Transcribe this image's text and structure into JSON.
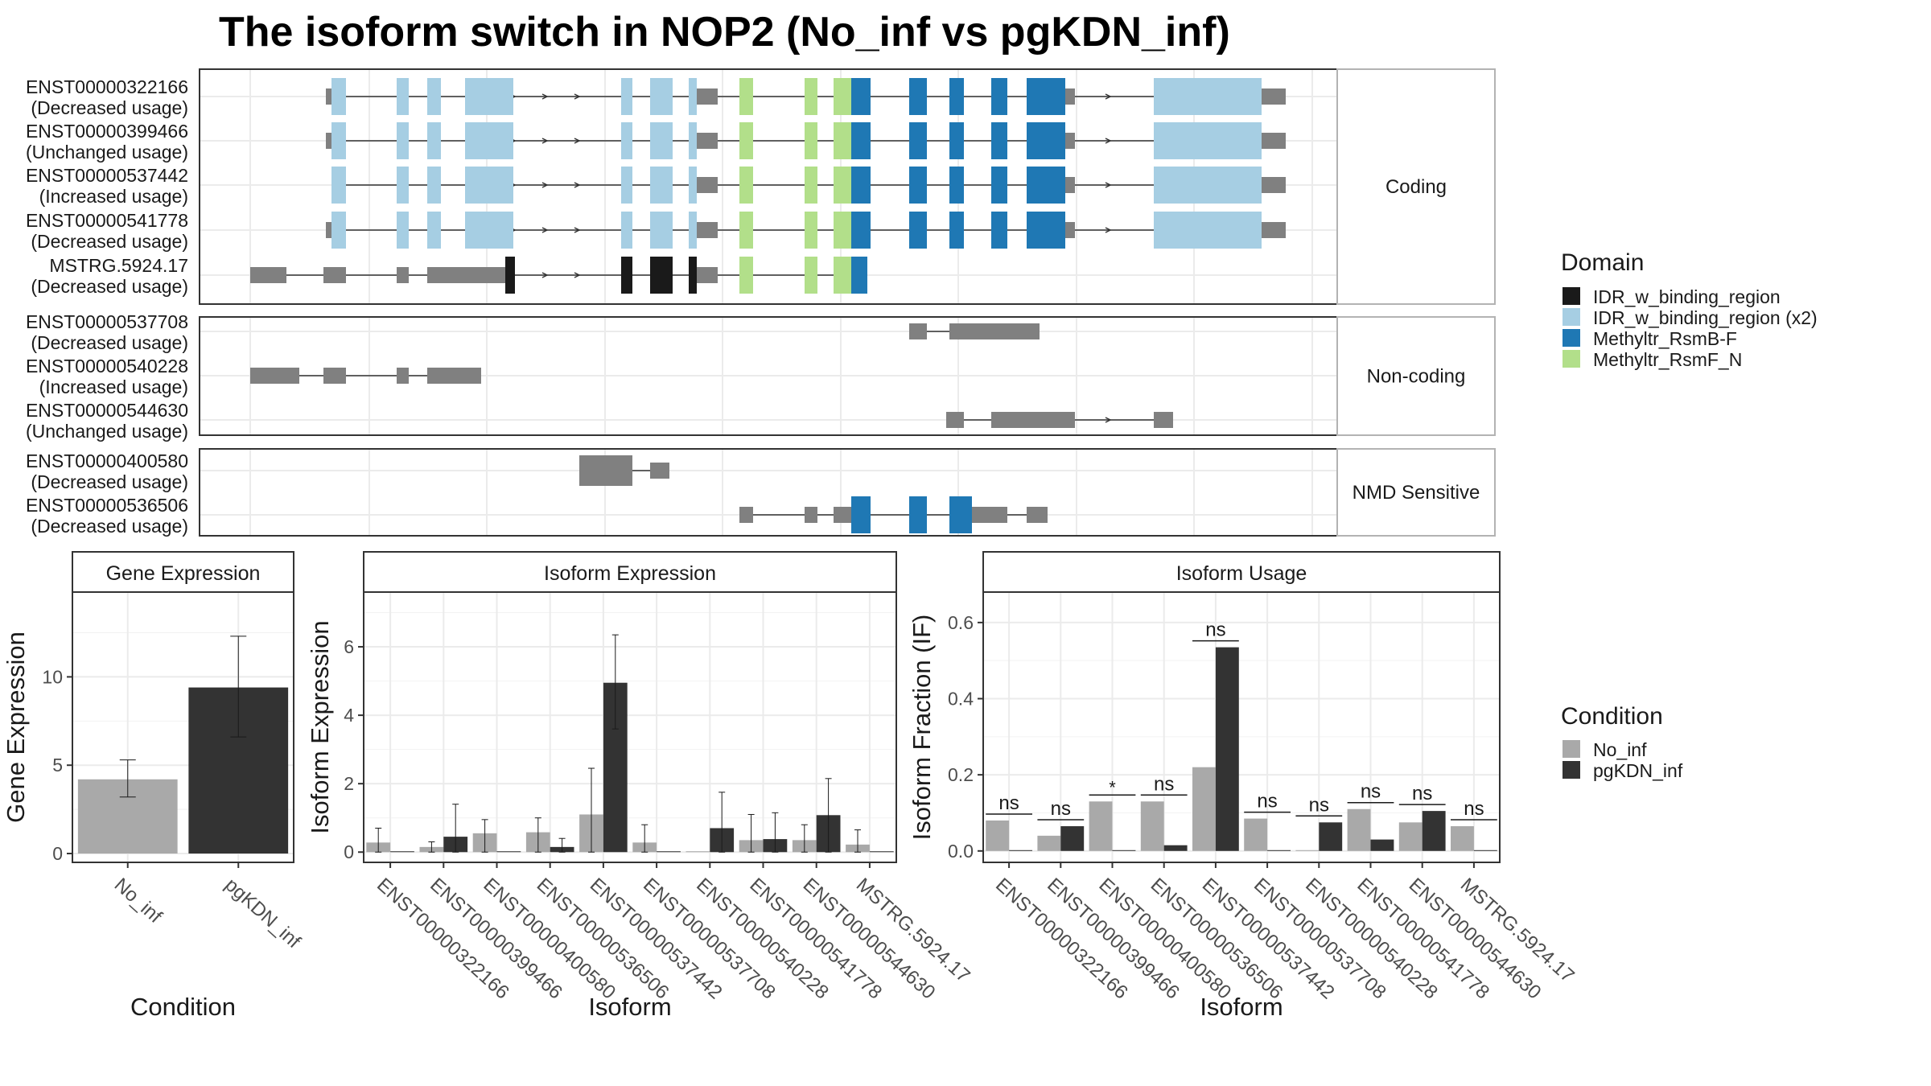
{
  "title": "The isoform switch in NOP2 (No_inf vs pgKDN_inf)",
  "colors": {
    "IDR_w_binding_region": "#1a1a1a",
    "IDR_w_binding_region (x2)": "#a6cee3",
    "Methyltr_RsmB-F": "#1f78b4",
    "Methyltr_RsmF_N": "#b2df8a",
    "none": "#808080",
    "No_inf": "#a9a9a9",
    "pgKDN_inf": "#333333"
  },
  "structure": {
    "facets": [
      {
        "label": "Coding",
        "isoforms": [
          {
            "id": "ENST00000322166",
            "usage": "(Decreased usage)",
            "variant": "full",
            "start": 1,
            "end": 22
          },
          {
            "id": "ENST00000399466",
            "usage": "(Unchanged usage)",
            "variant": "full",
            "start": 1,
            "end": 22
          },
          {
            "id": "ENST00000537442",
            "usage": "(Increased usage)",
            "variant": "full",
            "start": 2,
            "end": 22
          },
          {
            "id": "ENST00000541778",
            "usage": "(Decreased usage)",
            "variant": "full",
            "start": 1,
            "end": 22
          },
          {
            "id": "MSTRG.5924.17",
            "usage": "(Decreased usage)",
            "variant": "mstrg",
            "start": 1,
            "end": 14
          }
        ]
      },
      {
        "label": "Non-coding",
        "isoforms": [
          {
            "id": "ENST00000537708",
            "usage": "(Decreased usage)",
            "variant": "nc1",
            "start": 0,
            "end": 0
          },
          {
            "id": "ENST00000540228",
            "usage": "(Increased usage)",
            "variant": "nc2",
            "start": 0,
            "end": 0
          },
          {
            "id": "ENST00000544630",
            "usage": "(Unchanged usage)",
            "variant": "nc3",
            "start": 0,
            "end": 0
          }
        ]
      },
      {
        "label": "NMD Sensitive",
        "isoforms": [
          {
            "id": "ENST00000400580",
            "usage": "(Decreased usage)",
            "variant": "nmd1",
            "start": 0,
            "end": 0
          },
          {
            "id": "ENST00000536506",
            "usage": "(Decreased usage)",
            "variant": "nmd2",
            "start": 0,
            "end": 0
          }
        ]
      }
    ]
  },
  "legend_domain": {
    "title": "Domain",
    "items": [
      "IDR_w_binding_region",
      "IDR_w_binding_region (x2)",
      "Methyltr_RsmB-F",
      "Methyltr_RsmF_N"
    ]
  },
  "legend_condition": {
    "title": "Condition",
    "items": [
      "No_inf",
      "pgKDN_inf"
    ]
  },
  "chart_data": [
    {
      "type": "bar",
      "title": "Gene Expression",
      "xlabel": "Condition",
      "ylabel": "Gene Expression",
      "categories": [
        "No_inf",
        "pgKDN_inf"
      ],
      "values": [
        4.2,
        9.4
      ],
      "error_low": [
        3.2,
        6.6
      ],
      "error_high": [
        5.3,
        12.3
      ],
      "ylim": [
        -0.5,
        14.8
      ],
      "yticks": [
        0,
        5,
        10
      ]
    },
    {
      "type": "bar",
      "title": "Isoform Expression",
      "xlabel": "Isoform",
      "ylabel": "Isoform Expression",
      "categories": [
        "ENST00000322166",
        "ENST00000399466",
        "ENST00000400580",
        "ENST00000536506",
        "ENST00000537442",
        "ENST00000537708",
        "ENST00000540228",
        "ENST00000541778",
        "ENST00000544630",
        "MSTRG.5924.17"
      ],
      "series": [
        {
          "name": "No_inf",
          "values": [
            0.28,
            0.15,
            0.55,
            0.58,
            1.1,
            0.28,
            0.0,
            0.35,
            0.35,
            0.22
          ],
          "error_high": [
            0.7,
            0.3,
            0.95,
            1.0,
            2.45,
            0.8,
            0.0,
            1.1,
            0.8,
            0.65
          ]
        },
        {
          "name": "pgKDN_inf",
          "values": [
            0.0,
            0.45,
            0.0,
            0.15,
            4.95,
            0.0,
            0.7,
            0.38,
            1.08,
            0.0
          ],
          "error_low": [
            0,
            0.0,
            0,
            0.0,
            3.6,
            0,
            0.0,
            0.0,
            0.0,
            0
          ],
          "error_high": [
            0,
            1.4,
            0,
            0.4,
            6.35,
            0,
            1.75,
            1.15,
            2.15,
            0
          ]
        }
      ],
      "ylim": [
        -0.3,
        7.6
      ],
      "yticks": [
        0,
        2,
        4,
        6
      ]
    },
    {
      "type": "bar",
      "title": "Isoform Usage",
      "xlabel": "Isoform",
      "ylabel": "Isoform Fraction (IF)",
      "categories": [
        "ENST00000322166",
        "ENST00000399466",
        "ENST00000400580",
        "ENST00000536506",
        "ENST00000537442",
        "ENST00000537708",
        "ENST00000540228",
        "ENST00000541778",
        "ENST00000544630",
        "MSTRG.5924.17"
      ],
      "series": [
        {
          "name": "No_inf",
          "values": [
            0.08,
            0.04,
            0.13,
            0.13,
            0.22,
            0.085,
            0.0,
            0.11,
            0.075,
            0.065
          ]
        },
        {
          "name": "pgKDN_inf",
          "values": [
            0.0,
            0.065,
            0.0,
            0.015,
            0.535,
            0.0,
            0.075,
            0.03,
            0.105,
            0.0
          ]
        }
      ],
      "significance": [
        "ns",
        "ns",
        "*",
        "ns",
        "ns",
        "ns",
        "ns",
        "ns",
        "ns",
        "ns"
      ],
      "ylim": [
        -0.03,
        0.68
      ],
      "yticks": [
        0.0,
        0.2,
        0.4,
        0.6
      ]
    }
  ]
}
